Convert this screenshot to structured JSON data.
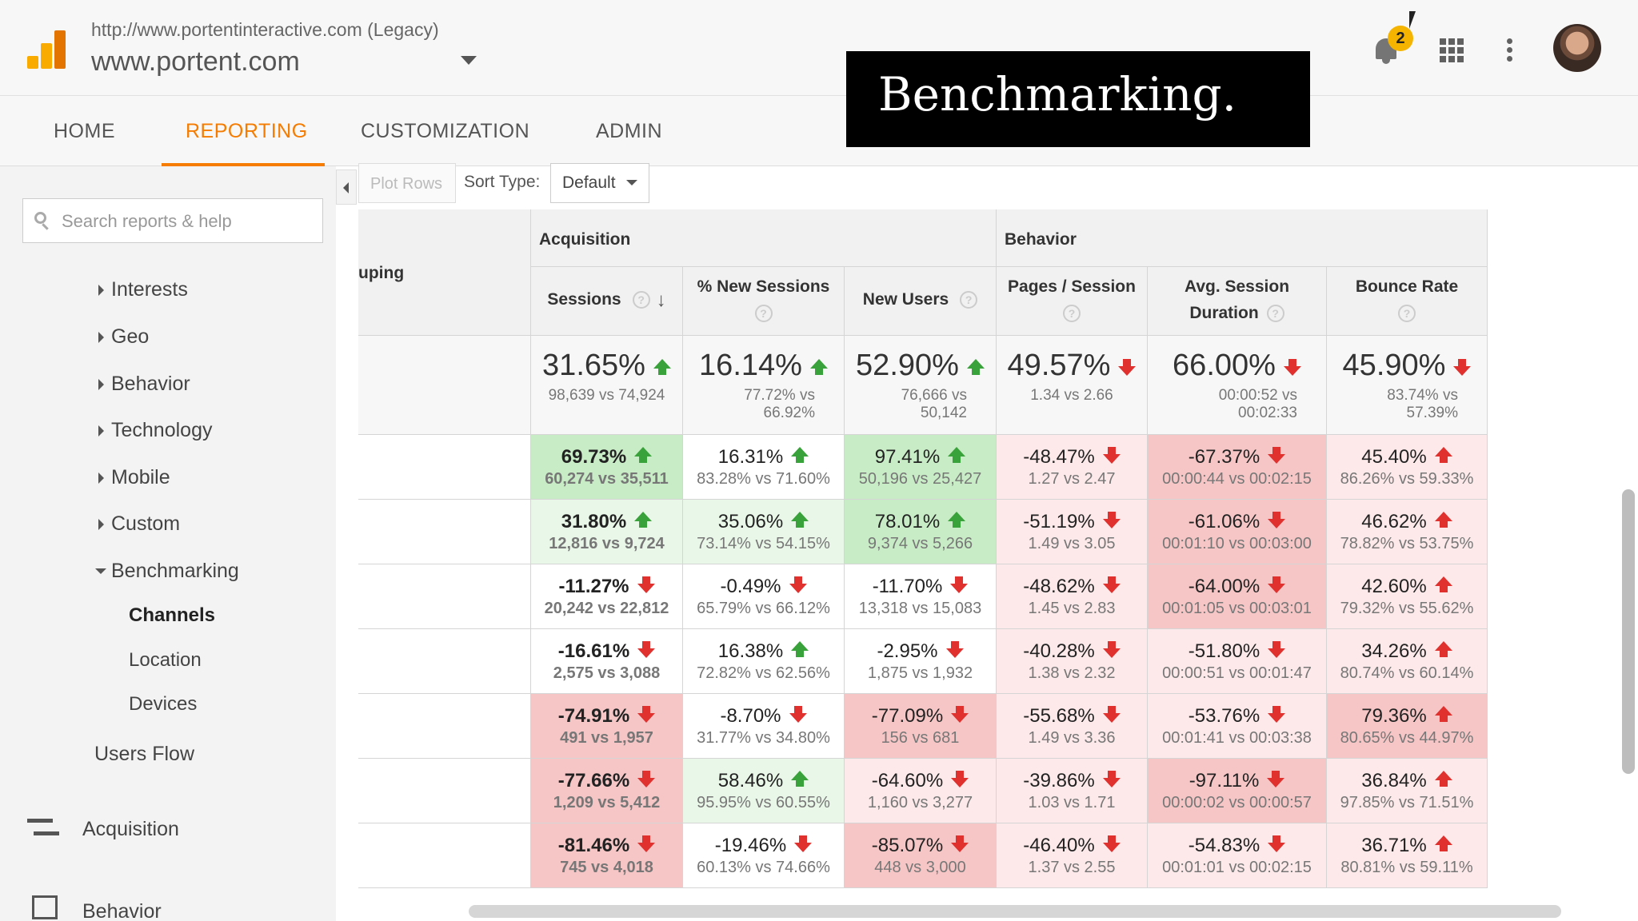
{
  "header": {
    "account_url": "http://www.portentinteractive.com (Legacy)",
    "property_name": "www.portent.com",
    "notification_count": "2",
    "overlay_caption": "Benchmarking."
  },
  "nav": {
    "tabs": [
      {
        "label": "HOME"
      },
      {
        "label": "REPORTING",
        "active": true
      },
      {
        "label": "CUSTOMIZATION"
      },
      {
        "label": "ADMIN"
      }
    ]
  },
  "sidebar": {
    "search_placeholder": "Search reports & help",
    "items": [
      {
        "label": "Interests"
      },
      {
        "label": "Geo"
      },
      {
        "label": "Behavior"
      },
      {
        "label": "Technology"
      },
      {
        "label": "Mobile"
      },
      {
        "label": "Custom"
      },
      {
        "label": "Benchmarking",
        "expanded": true
      }
    ],
    "benchmarking_children": [
      {
        "label": "Channels",
        "active": true
      },
      {
        "label": "Location"
      },
      {
        "label": "Devices"
      }
    ],
    "users_flow": "Users Flow",
    "sections": [
      {
        "label": "Acquisition",
        "icon": "acquisition-icon"
      },
      {
        "label": "Behavior",
        "icon": "behavior-icon"
      }
    ]
  },
  "toolbar": {
    "plot_rows": "Plot Rows",
    "sort_type_label": "Sort Type:",
    "sort_type_value": "Default"
  },
  "colors": {
    "accent": "#f57c00",
    "up_arrow": "#3aa23a",
    "down_arrow": "#e0312f",
    "strong_green": "#c8ecc5",
    "light_green": "#e9f7e8",
    "strong_red": "#f6c6c6",
    "light_red": "#fde9e9"
  },
  "table": {
    "left_header_partial": "uping",
    "groups": [
      "Acquisition",
      "Behavior"
    ],
    "columns": [
      {
        "label": "Sessions",
        "help": "?",
        "sort": "↓"
      },
      {
        "label": "% New Sessions",
        "help": "?"
      },
      {
        "label": "New Users",
        "help": "?"
      },
      {
        "label": "Pages / Session",
        "help": "?"
      },
      {
        "label": "Avg. Session Duration",
        "label_line1": "Avg. Session",
        "label_line2": "Duration",
        "help": "?"
      },
      {
        "label": "Bounce Rate",
        "help": "?"
      }
    ],
    "totals": [
      {
        "pct": "31.65%",
        "dir": "up",
        "cmp": "98,639 vs 74,924"
      },
      {
        "pct": "16.14%",
        "dir": "up",
        "cmp1": "77.72% vs",
        "cmp2": "66.92%"
      },
      {
        "pct": "52.90%",
        "dir": "up",
        "cmp1": "76,666 vs",
        "cmp2": "50,142"
      },
      {
        "pct": "49.57%",
        "dir": "down",
        "cmp": "1.34 vs 2.66"
      },
      {
        "pct": "66.00%",
        "dir": "down",
        "cmp1": "00:00:52 vs",
        "cmp2": "00:02:33"
      },
      {
        "pct": "45.90%",
        "dir": "down",
        "cmp1": "83.74% vs",
        "cmp2": "57.39%"
      }
    ],
    "rows": [
      [
        {
          "v": "69.73%",
          "dir": "up",
          "cmp": "60,274 vs 35,511",
          "tone": "strong_green"
        },
        {
          "v": "16.31%",
          "dir": "up",
          "cmp": "83.28% vs 71.60%",
          "tone": "none"
        },
        {
          "v": "97.41%",
          "dir": "up",
          "cmp": "50,196 vs 25,427",
          "tone": "strong_green"
        },
        {
          "v": "-48.47%",
          "dir": "down",
          "cmp": "1.27 vs 2.47",
          "tone": "light_red"
        },
        {
          "v": "-67.37%",
          "dir": "down",
          "cmp": "00:00:44 vs 00:02:15",
          "tone": "strong_red"
        },
        {
          "v": "45.40%",
          "dir": "up_red",
          "cmp": "86.26% vs 59.33%",
          "tone": "light_red"
        }
      ],
      [
        {
          "v": "31.80%",
          "dir": "up",
          "cmp": "12,816 vs 9,724",
          "tone": "light_green"
        },
        {
          "v": "35.06%",
          "dir": "up",
          "cmp": "73.14% vs 54.15%",
          "tone": "light_green"
        },
        {
          "v": "78.01%",
          "dir": "up",
          "cmp": "9,374 vs 5,266",
          "tone": "strong_green"
        },
        {
          "v": "-51.19%",
          "dir": "down",
          "cmp": "1.49 vs 3.05",
          "tone": "light_red"
        },
        {
          "v": "-61.06%",
          "dir": "down",
          "cmp": "00:01:10 vs 00:03:00",
          "tone": "strong_red"
        },
        {
          "v": "46.62%",
          "dir": "up_red",
          "cmp": "78.82% vs 53.75%",
          "tone": "light_red"
        }
      ],
      [
        {
          "v": "-11.27%",
          "dir": "down",
          "cmp": "20,242 vs 22,812",
          "tone": "none"
        },
        {
          "v": "-0.49%",
          "dir": "down",
          "cmp": "65.79% vs 66.12%",
          "tone": "none"
        },
        {
          "v": "-11.70%",
          "dir": "down",
          "cmp": "13,318 vs 15,083",
          "tone": "none"
        },
        {
          "v": "-48.62%",
          "dir": "down",
          "cmp": "1.45 vs 2.83",
          "tone": "light_red"
        },
        {
          "v": "-64.00%",
          "dir": "down",
          "cmp": "00:01:05 vs 00:03:01",
          "tone": "strong_red"
        },
        {
          "v": "42.60%",
          "dir": "up_red",
          "cmp": "79.32% vs 55.62%",
          "tone": "light_red"
        }
      ],
      [
        {
          "v": "-16.61%",
          "dir": "down",
          "cmp": "2,575 vs 3,088",
          "tone": "none"
        },
        {
          "v": "16.38%",
          "dir": "up",
          "cmp": "72.82% vs 62.56%",
          "tone": "none"
        },
        {
          "v": "-2.95%",
          "dir": "down",
          "cmp": "1,875 vs 1,932",
          "tone": "none"
        },
        {
          "v": "-40.28%",
          "dir": "down",
          "cmp": "1.38 vs 2.32",
          "tone": "light_red"
        },
        {
          "v": "-51.80%",
          "dir": "down",
          "cmp": "00:00:51 vs 00:01:47",
          "tone": "light_red"
        },
        {
          "v": "34.26%",
          "dir": "up_red",
          "cmp": "80.74% vs 60.14%",
          "tone": "light_red"
        }
      ],
      [
        {
          "v": "-74.91%",
          "dir": "down",
          "cmp": "491 vs 1,957",
          "tone": "strong_red"
        },
        {
          "v": "-8.70%",
          "dir": "down",
          "cmp": "31.77% vs 34.80%",
          "tone": "none"
        },
        {
          "v": "-77.09%",
          "dir": "down",
          "cmp": "156 vs 681",
          "tone": "strong_red"
        },
        {
          "v": "-55.68%",
          "dir": "down",
          "cmp": "1.49 vs 3.36",
          "tone": "light_red"
        },
        {
          "v": "-53.76%",
          "dir": "down",
          "cmp": "00:01:41 vs 00:03:38",
          "tone": "light_red"
        },
        {
          "v": "79.36%",
          "dir": "up_red",
          "cmp": "80.65% vs 44.97%",
          "tone": "strong_red"
        }
      ],
      [
        {
          "v": "-77.66%",
          "dir": "down",
          "cmp": "1,209 vs 5,412",
          "tone": "strong_red"
        },
        {
          "v": "58.46%",
          "dir": "up",
          "cmp": "95.95% vs 60.55%",
          "tone": "light_green"
        },
        {
          "v": "-64.60%",
          "dir": "down",
          "cmp": "1,160 vs 3,277",
          "tone": "light_red"
        },
        {
          "v": "-39.86%",
          "dir": "down",
          "cmp": "1.03 vs 1.71",
          "tone": "light_red"
        },
        {
          "v": "-97.11%",
          "dir": "down",
          "cmp": "00:00:02 vs 00:00:57",
          "tone": "strong_red"
        },
        {
          "v": "36.84%",
          "dir": "up_red",
          "cmp": "97.85% vs 71.51%",
          "tone": "light_red"
        }
      ],
      [
        {
          "v": "-81.46%",
          "dir": "down",
          "cmp": "745 vs 4,018",
          "tone": "strong_red"
        },
        {
          "v": "-19.46%",
          "dir": "down",
          "cmp": "60.13% vs 74.66%",
          "tone": "none"
        },
        {
          "v": "-85.07%",
          "dir": "down",
          "cmp": "448 vs 3,000",
          "tone": "strong_red"
        },
        {
          "v": "-46.40%",
          "dir": "down",
          "cmp": "1.37 vs 2.55",
          "tone": "light_red"
        },
        {
          "v": "-54.83%",
          "dir": "down",
          "cmp": "00:01:01 vs 00:02:15",
          "tone": "light_red"
        },
        {
          "v": "36.71%",
          "dir": "up_red",
          "cmp": "80.81% vs 59.11%",
          "tone": "light_red"
        }
      ]
    ]
  }
}
